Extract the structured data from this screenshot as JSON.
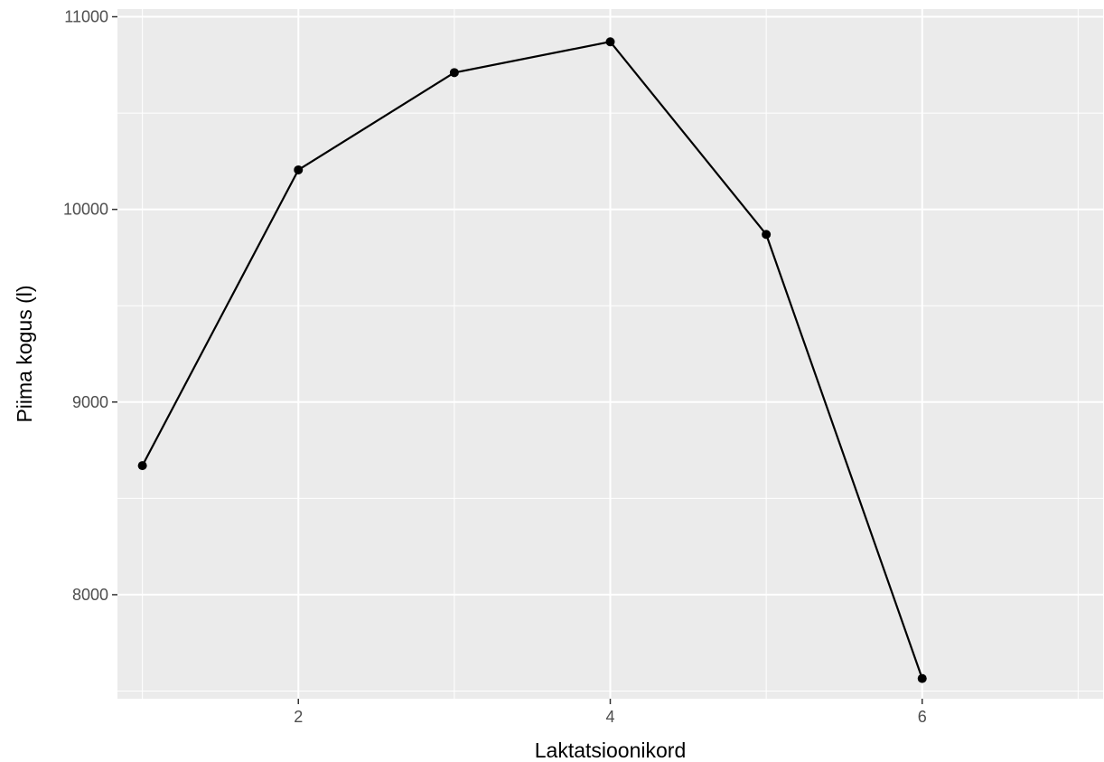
{
  "chart_data": {
    "type": "line",
    "xlabel": "Laktatsioonikord",
    "ylabel": "Piima kogus (l)",
    "x": [
      1,
      2,
      3,
      4,
      5,
      6
    ],
    "series": [
      {
        "values": [
          8670,
          10205,
          10710,
          10870,
          9870,
          7565
        ]
      }
    ],
    "xlim": [
      0.84,
      7.16
    ],
    "ylim": [
      7460,
      11040
    ],
    "x_major_ticks": [
      2,
      4,
      6
    ],
    "x_minor_ticks": [
      1,
      3,
      5,
      7
    ],
    "y_major_ticks": [
      8000,
      9000,
      10000,
      11000
    ],
    "y_minor_ticks": [
      7500,
      8500,
      9500,
      10500
    ],
    "x_tick_labels": [
      "2",
      "4",
      "6"
    ],
    "y_tick_labels": [
      "8000",
      "9000",
      "10000",
      "11000"
    ],
    "grid": true,
    "panel_background": "#ebebeb",
    "grid_color": "#ffffff",
    "line_color": "#000000"
  }
}
